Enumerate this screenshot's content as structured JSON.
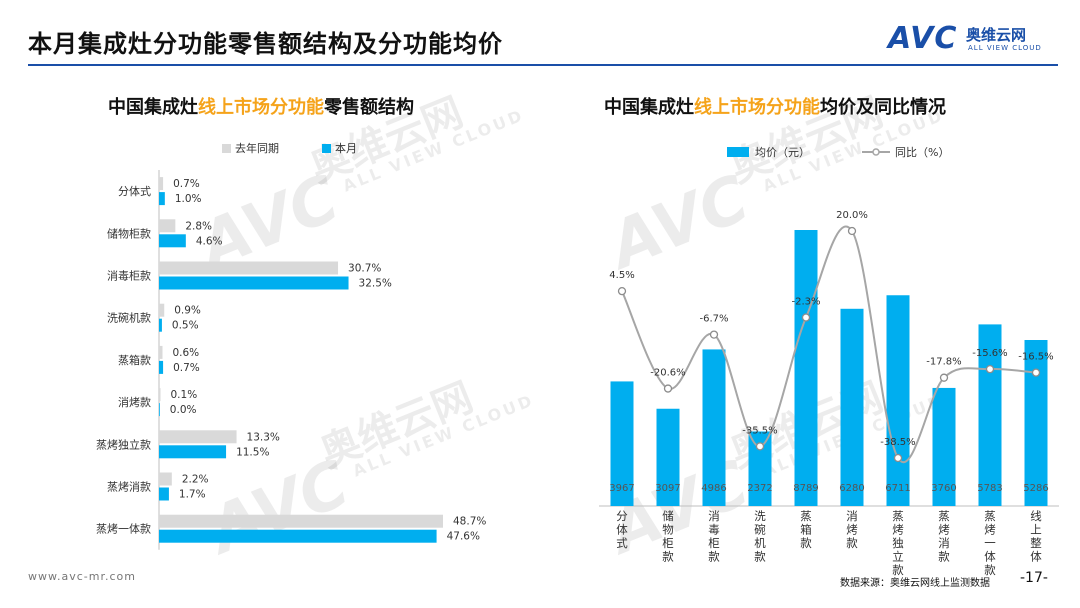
{
  "header": {
    "title": "本月集成灶分功能零售额结构及分功能均价",
    "logo_mark": "AVC",
    "logo_cn": "奥维云网",
    "logo_en": "ALL VIEW CLOUD"
  },
  "footer": {
    "url": "www.avc-mr.com",
    "source": "数据来源：奥维云网线上监测数据",
    "page": "-17-"
  },
  "watermark": {
    "mark": "AVC",
    "cn": "奥维云网",
    "en": "ALL VIEW CLOUD"
  },
  "colors": {
    "accent": "#00aeef",
    "prior": "#d9d9d9",
    "line": "#a6a6a6",
    "title_highlight": "#f5a31a",
    "brand": "#1a4fa8"
  },
  "chart_data": [
    {
      "type": "bar",
      "orientation": "horizontal",
      "title_parts": [
        "中国集成灶",
        "线上市场分功能",
        "零售额结构"
      ],
      "categories": [
        "分体式",
        "储物柜款",
        "消毒柜款",
        "洗碗机款",
        "蒸箱款",
        "消烤款",
        "蒸烤独立款",
        "蒸烤消款",
        "蒸烤一体款"
      ],
      "series": [
        {
          "name": "去年同期",
          "color": "#d9d9d9",
          "values": [
            0.7,
            2.8,
            30.7,
            0.9,
            0.6,
            0.1,
            13.3,
            2.2,
            48.7
          ],
          "labels": [
            "0.7%",
            "2.8%",
            "30.7%",
            "0.9%",
            "0.6%",
            "0.1%",
            "13.3%",
            "2.2%",
            "48.7%"
          ]
        },
        {
          "name": "本月",
          "color": "#00aeef",
          "values": [
            1.0,
            4.6,
            32.5,
            0.5,
            0.7,
            0.0,
            11.5,
            1.7,
            47.6
          ],
          "labels": [
            "1.0%",
            "4.6%",
            "32.5%",
            "0.5%",
            "0.7%",
            "0.0%",
            "11.5%",
            "1.7%",
            "47.6%"
          ]
        }
      ],
      "xlim": [
        0,
        50
      ],
      "grid": false,
      "legend": "top"
    },
    {
      "type": "bar+line",
      "title_parts": [
        "中国集成灶",
        "线上市场分功能",
        "均价及同比情况"
      ],
      "categories": [
        "分体式",
        "储物柜款",
        "消毒柜款",
        "洗碗机款",
        "蒸箱款",
        "消烤款",
        "蒸烤独立款",
        "蒸烤消款",
        "蒸烤一体款",
        "线上整体"
      ],
      "bars": {
        "name": "均价（元）",
        "color": "#00aeef",
        "values": [
          3967,
          3097,
          4986,
          2372,
          8789,
          6280,
          6711,
          3760,
          5783,
          5286
        ],
        "labels": [
          "3967",
          "3097",
          "4986",
          "2372",
          "8789",
          "6280",
          "6711",
          "3760",
          "5783",
          "5286"
        ]
      },
      "line": {
        "name": "同比（%）",
        "color": "#a6a6a6",
        "values": [
          4.5,
          -20.6,
          -6.7,
          -35.5,
          -2.3,
          20.0,
          -38.5,
          -17.8,
          -15.6,
          -16.5
        ],
        "labels": [
          "4.5%",
          "-20.6%",
          "-6.7%",
          "-35.5%",
          "-2.3%",
          "20.0%",
          "-38.5%",
          "-17.8%",
          "-15.6%",
          "-16.5%"
        ]
      },
      "ylim_bar": [
        0,
        9500
      ],
      "ylim_line": [
        -45,
        25
      ],
      "grid": false,
      "legend": "top"
    }
  ]
}
